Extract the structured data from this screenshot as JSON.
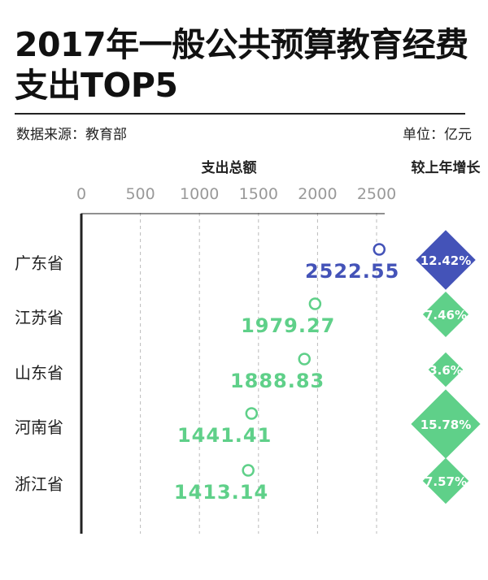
{
  "header": {
    "title": "2017年一般公共预算教育经费支出TOP5",
    "source": "数据来源：教育部",
    "unit": "单位：亿元"
  },
  "chart_data": {
    "type": "lollipop",
    "xlabel": "支出总额",
    "growth_label": "较上年增长",
    "xlim": [
      0,
      2500
    ],
    "xticks": [
      0,
      500,
      1000,
      1500,
      2000,
      2500
    ],
    "categories": [
      "广东省",
      "江苏省",
      "山东省",
      "河南省",
      "浙江省"
    ],
    "values": [
      2522.55,
      1979.27,
      1888.83,
      1441.41,
      1413.14
    ],
    "value_labels": [
      "2522.55",
      "1979.27",
      "1888.83",
      "1441.41",
      "1413.14"
    ],
    "growth": [
      12.42,
      7.46,
      3.6,
      15.78,
      7.57
    ],
    "growth_labels": [
      "12.42%",
      "7.46%",
      "3.6%",
      "15.78%",
      "7.57%"
    ],
    "colors": {
      "highlight": "#4453b8",
      "normal": "#5fd089",
      "grid": "#bbbbbb",
      "axis": "#222222"
    }
  }
}
